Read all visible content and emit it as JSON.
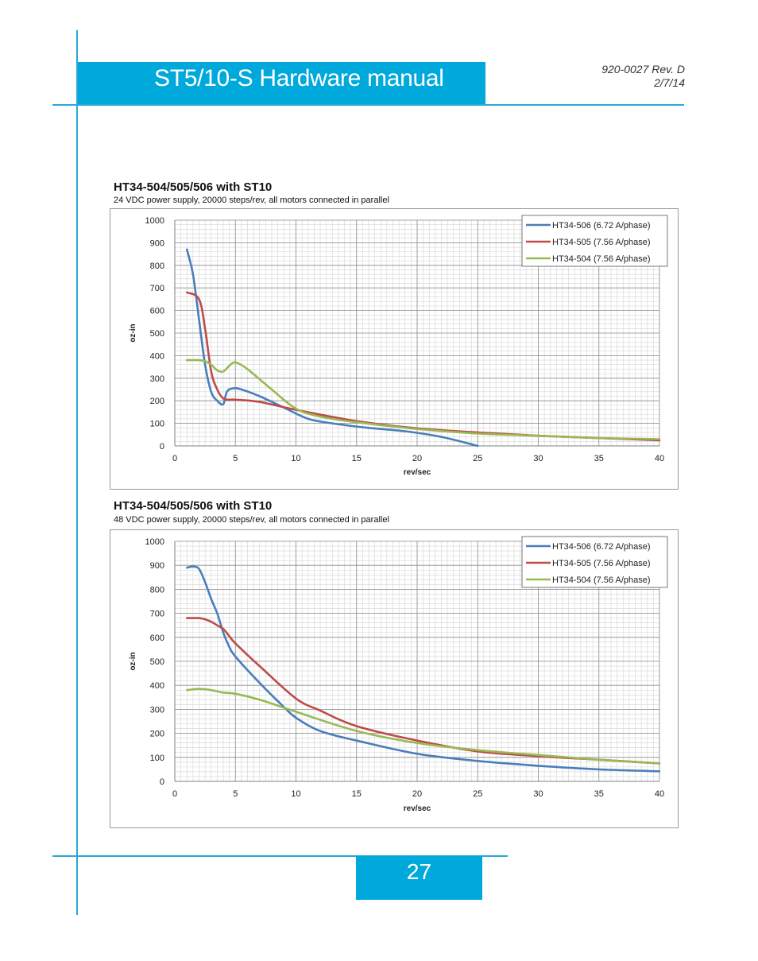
{
  "header": {
    "title": "ST5/10-S Hardware manual",
    "doc_number": "920-0027 Rev. D",
    "date": "2/7/14"
  },
  "footer": {
    "page_number": "27"
  },
  "colors": {
    "accent": "#00a9dc",
    "rule": "#29a8d9"
  },
  "charts": [
    {
      "heading": "HT34-504/505/506 with ST10",
      "subheading": "24 VDC power supply, 20000 steps/rev, all motors connected in parallel"
    },
    {
      "heading": "HT34-504/505/506 with ST10",
      "subheading": "48 VDC power supply, 20000 steps/rev, all motors connected in parallel"
    }
  ],
  "chart_data": [
    {
      "type": "line",
      "title": "HT34-504/505/506 with ST10",
      "subtitle": "24 VDC power supply, 20000 steps/rev, all motors connected in parallel",
      "xlabel": "rev/sec",
      "ylabel": "oz-in",
      "xlim": [
        0,
        40
      ],
      "ylim": [
        0,
        1000
      ],
      "xticks": [
        0,
        5,
        10,
        15,
        20,
        25,
        30,
        35,
        40
      ],
      "yticks": [
        0,
        100,
        200,
        300,
        400,
        500,
        600,
        700,
        800,
        900,
        1000
      ],
      "grid": true,
      "legend": "top-right",
      "series": [
        {
          "name": "HT34-506 (6.72 A/phase)",
          "color": "#4a7ebb",
          "x": [
            1,
            1.5,
            2,
            2.5,
            3,
            3.5,
            4,
            4.3,
            4.8,
            5.5,
            7,
            9,
            11,
            13,
            16,
            19,
            22,
            25
          ],
          "y": [
            870,
            760,
            560,
            360,
            240,
            200,
            185,
            240,
            255,
            250,
            220,
            170,
            120,
            100,
            80,
            65,
            40,
            0
          ]
        },
        {
          "name": "HT34-505 (7.56 A/phase)",
          "color": "#be4b48",
          "x": [
            1,
            2,
            2.5,
            3,
            3.5,
            4,
            4.5,
            5,
            7,
            10,
            15,
            20,
            25,
            30,
            35,
            40
          ],
          "y": [
            680,
            650,
            520,
            330,
            250,
            210,
            205,
            205,
            195,
            160,
            110,
            78,
            60,
            45,
            35,
            25
          ]
        },
        {
          "name": "HT34-504 (7.56 A/phase)",
          "color": "#98b954",
          "x": [
            1,
            2,
            2.5,
            3,
            3.5,
            4,
            4.5,
            5,
            6,
            8,
            10,
            12,
            15,
            20,
            25,
            30,
            35,
            40
          ],
          "y": [
            380,
            380,
            375,
            360,
            335,
            330,
            355,
            370,
            340,
            250,
            165,
            130,
            105,
            75,
            55,
            45,
            35,
            30
          ]
        }
      ]
    },
    {
      "type": "line",
      "title": "HT34-504/505/506 with ST10",
      "subtitle": "48 VDC power supply, 20000 steps/rev, all motors connected in parallel",
      "xlabel": "rev/sec",
      "ylabel": "oz-in",
      "xlim": [
        0,
        40
      ],
      "ylim": [
        0,
        1000
      ],
      "xticks": [
        0,
        5,
        10,
        15,
        20,
        25,
        30,
        35,
        40
      ],
      "yticks": [
        0,
        100,
        200,
        300,
        400,
        500,
        600,
        700,
        800,
        900,
        1000
      ],
      "grid": true,
      "legend": "top-right",
      "series": [
        {
          "name": "HT34-506 (6.72 A/phase)",
          "color": "#4a7ebb",
          "x": [
            1,
            1.5,
            2,
            2.5,
            3,
            3.5,
            4,
            4.5,
            5,
            7,
            9,
            10,
            12,
            15,
            20,
            25,
            30,
            35,
            40
          ],
          "y": [
            890,
            895,
            885,
            830,
            760,
            700,
            620,
            560,
            520,
            410,
            310,
            265,
            210,
            170,
            115,
            85,
            65,
            50,
            42
          ]
        },
        {
          "name": "HT34-505 (7.56 A/phase)",
          "color": "#be4b48",
          "x": [
            1,
            2,
            2.5,
            3,
            3.5,
            4,
            4.5,
            5,
            7,
            10,
            12,
            15,
            20,
            25,
            30,
            35,
            40
          ],
          "y": [
            680,
            680,
            675,
            665,
            650,
            635,
            605,
            575,
            480,
            345,
            295,
            230,
            170,
            125,
            105,
            90,
            75
          ]
        },
        {
          "name": "HT34-504 (7.56 A/phase)",
          "color": "#98b954",
          "x": [
            1,
            2,
            3,
            4,
            5,
            7,
            10,
            15,
            20,
            25,
            30,
            35,
            40
          ],
          "y": [
            380,
            385,
            380,
            370,
            365,
            340,
            290,
            210,
            160,
            130,
            110,
            90,
            75
          ]
        }
      ]
    }
  ]
}
